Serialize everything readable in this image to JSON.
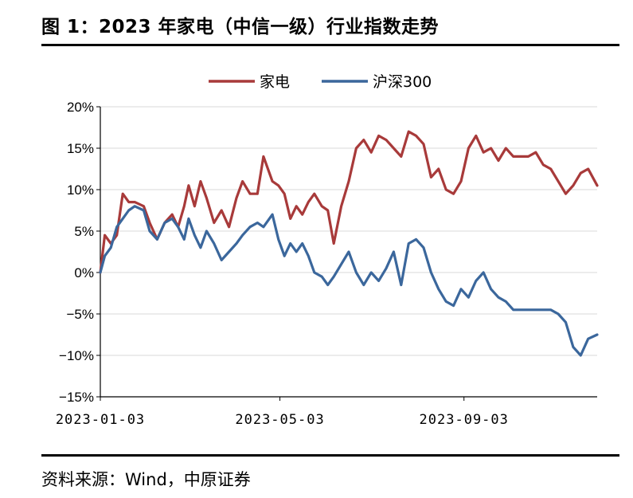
{
  "header": {
    "title": "图 1：2023 年家电（中信一级）行业指数走势"
  },
  "footer": {
    "source": "资料来源：Wind，中原证券"
  },
  "chart_data": {
    "type": "line",
    "title": "",
    "xlabel": "",
    "ylabel": "",
    "ylim": [
      -15,
      20
    ],
    "ytick_values": [
      -15,
      -10,
      -5,
      0,
      5,
      10,
      15,
      20
    ],
    "ytick_labels": [
      "−15%",
      "−10%",
      "−5%",
      "0%",
      "5%",
      "10%",
      "15%",
      "20%"
    ],
    "xlim": [
      "2023-01-03",
      "2023-12-01"
    ],
    "xtick_labels": [
      "2023-01-03",
      "2023-05-03",
      "2023-09-03"
    ],
    "grid": "horizontal",
    "legend_position": "top-center",
    "colors": {
      "家电": "#A83A3A",
      "沪深300": "#3B679C",
      "grid": "#D9D9D9",
      "axis": "#000000"
    },
    "series": [
      {
        "name": "家电",
        "x": [
          "2023-01-03",
          "2023-01-06",
          "2023-01-10",
          "2023-01-14",
          "2023-01-18",
          "2023-01-22",
          "2023-01-26",
          "2023-02-01",
          "2023-02-05",
          "2023-02-10",
          "2023-02-15",
          "2023-02-20",
          "2023-02-24",
          "2023-02-28",
          "2023-03-03",
          "2023-03-07",
          "2023-03-11",
          "2023-03-15",
          "2023-03-20",
          "2023-03-25",
          "2023-03-30",
          "2023-04-04",
          "2023-04-08",
          "2023-04-13",
          "2023-04-18",
          "2023-04-22",
          "2023-04-28",
          "2023-05-02",
          "2023-05-06",
          "2023-05-10",
          "2023-05-14",
          "2023-05-18",
          "2023-05-22",
          "2023-05-26",
          "2023-05-31",
          "2023-06-04",
          "2023-06-08",
          "2023-06-13",
          "2023-06-18",
          "2023-06-23",
          "2023-06-28",
          "2023-07-03",
          "2023-07-08",
          "2023-07-13",
          "2023-07-18",
          "2023-07-23",
          "2023-07-28",
          "2023-08-02",
          "2023-08-07",
          "2023-08-12",
          "2023-08-17",
          "2023-08-22",
          "2023-08-27",
          "2023-09-01",
          "2023-09-06",
          "2023-09-11",
          "2023-09-16",
          "2023-09-21",
          "2023-09-26",
          "2023-10-01",
          "2023-10-06",
          "2023-10-11",
          "2023-10-16",
          "2023-10-21",
          "2023-10-26",
          "2023-10-31",
          "2023-11-05",
          "2023-11-10",
          "2023-11-15",
          "2023-11-20",
          "2023-11-25",
          "2023-12-01"
        ],
        "values": [
          0,
          4.5,
          3.5,
          4.5,
          9.5,
          8.5,
          8.5,
          8.0,
          6.0,
          4.0,
          6.0,
          7.0,
          5.5,
          8.0,
          10.5,
          8.0,
          11.0,
          9.0,
          6.0,
          7.5,
          5.5,
          9.0,
          11.0,
          9.5,
          9.5,
          14.0,
          11.0,
          10.5,
          9.5,
          6.5,
          8.0,
          7.0,
          8.5,
          9.5,
          8.0,
          7.5,
          3.5,
          8.0,
          11.0,
          15.0,
          16.0,
          14.5,
          16.5,
          16.0,
          15.0,
          14.0,
          17.0,
          16.5,
          15.5,
          11.5,
          12.5,
          10.0,
          9.5,
          11.0,
          15.0,
          16.5,
          14.5,
          15.0,
          13.5,
          15.0,
          14.0,
          14.0,
          14.0,
          14.5,
          13.0,
          12.5,
          11.0,
          9.5,
          10.5,
          12.0,
          12.5,
          10.5
        ]
      },
      {
        "name": "沪深300",
        "x": [
          "2023-01-03",
          "2023-01-06",
          "2023-01-10",
          "2023-01-14",
          "2023-01-18",
          "2023-01-22",
          "2023-01-26",
          "2023-02-01",
          "2023-02-05",
          "2023-02-10",
          "2023-02-15",
          "2023-02-20",
          "2023-02-24",
          "2023-02-28",
          "2023-03-03",
          "2023-03-07",
          "2023-03-11",
          "2023-03-15",
          "2023-03-20",
          "2023-03-25",
          "2023-03-30",
          "2023-04-04",
          "2023-04-08",
          "2023-04-13",
          "2023-04-18",
          "2023-04-22",
          "2023-04-28",
          "2023-05-02",
          "2023-05-06",
          "2023-05-10",
          "2023-05-14",
          "2023-05-18",
          "2023-05-22",
          "2023-05-26",
          "2023-05-31",
          "2023-06-04",
          "2023-06-08",
          "2023-06-13",
          "2023-06-18",
          "2023-06-23",
          "2023-06-28",
          "2023-07-03",
          "2023-07-08",
          "2023-07-13",
          "2023-07-18",
          "2023-07-23",
          "2023-07-28",
          "2023-08-02",
          "2023-08-07",
          "2023-08-12",
          "2023-08-17",
          "2023-08-22",
          "2023-08-27",
          "2023-09-01",
          "2023-09-06",
          "2023-09-11",
          "2023-09-16",
          "2023-09-21",
          "2023-09-26",
          "2023-10-01",
          "2023-10-06",
          "2023-10-11",
          "2023-10-16",
          "2023-10-21",
          "2023-10-26",
          "2023-10-31",
          "2023-11-05",
          "2023-11-10",
          "2023-11-15",
          "2023-11-20",
          "2023-11-25",
          "2023-12-01"
        ],
        "values": [
          0,
          2.0,
          3.0,
          5.5,
          6.5,
          7.5,
          8.0,
          7.5,
          5.0,
          4.0,
          6.0,
          6.5,
          5.5,
          4.0,
          6.5,
          4.5,
          3.0,
          5.0,
          3.5,
          1.5,
          2.5,
          3.5,
          4.5,
          5.5,
          6.0,
          5.5,
          7.0,
          4.0,
          2.0,
          3.5,
          2.5,
          3.5,
          2.0,
          0,
          -0.5,
          -1.5,
          -0.5,
          1.0,
          2.5,
          0,
          -1.5,
          0,
          -1.0,
          0.5,
          2.5,
          -1.5,
          3.5,
          4.0,
          3.0,
          0,
          -2.0,
          -3.5,
          -4.0,
          -2.0,
          -3.0,
          -1.0,
          0,
          -2.0,
          -3.0,
          -3.5,
          -4.5,
          -4.5,
          -4.5,
          -4.5,
          -4.5,
          -4.5,
          -5.0,
          -6.0,
          -9.0,
          -10.0,
          -8.0,
          -7.5
        ]
      }
    ]
  }
}
